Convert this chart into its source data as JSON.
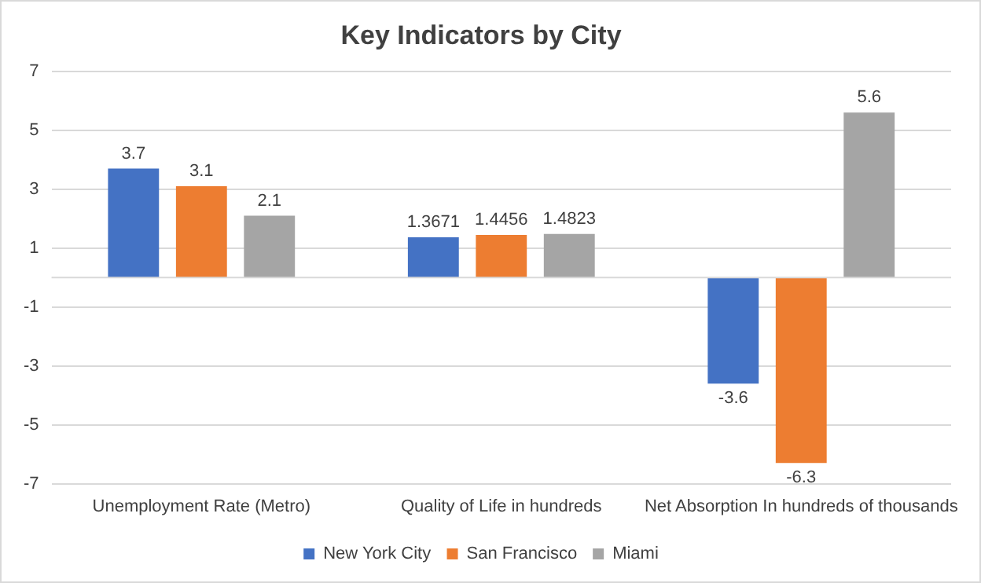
{
  "chart_data": {
    "type": "bar",
    "title": "Key Indicators by City",
    "categories": [
      "Unemployment Rate (Metro)",
      "Quality of Life in hundreds",
      "Net Absorption In hundreds of thousands"
    ],
    "series": [
      {
        "name": "New York City",
        "color": "#4472c4",
        "values": [
          3.7,
          1.3671,
          -3.6
        ]
      },
      {
        "name": "San Francisco",
        "color": "#ed7d31",
        "values": [
          3.1,
          1.4456,
          -6.3
        ]
      },
      {
        "name": "Miami",
        "color": "#a5a5a5",
        "values": [
          2.1,
          1.4823,
          5.6
        ]
      }
    ],
    "ylim": [
      -7,
      7
    ],
    "yticks": [
      -7,
      -5,
      -3,
      -1,
      1,
      3,
      5,
      7
    ],
    "grid": "y",
    "legend": "bottom",
    "data_labels": true
  }
}
